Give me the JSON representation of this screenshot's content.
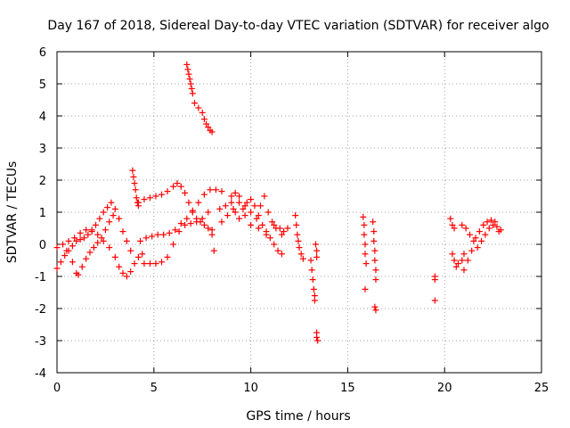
{
  "chart_data": {
    "type": "scatter",
    "title": "Day 167 of 2018, Sidereal Day-to-day VTEC variation (SDTVAR) for receiver algo",
    "xlabel": "GPS time / hours",
    "ylabel": "SDTVAR / TECUs",
    "xlim": [
      0,
      25
    ],
    "ylim": [
      -4,
      6
    ],
    "xticks": [
      0,
      5,
      10,
      15,
      20,
      25
    ],
    "yticks": [
      -4,
      -3,
      -2,
      -1,
      0,
      1,
      2,
      3,
      4,
      5,
      6
    ],
    "grid": true,
    "marker": "+",
    "color": "#ff0000",
    "series": [
      {
        "name": "SDTVAR",
        "points": [
          [
            0.0,
            -0.75
          ],
          [
            0.2,
            -0.55
          ],
          [
            0.4,
            -0.35
          ],
          [
            0.6,
            -0.2
          ],
          [
            0.8,
            -0.05
          ],
          [
            1.0,
            0.1
          ],
          [
            1.2,
            0.15
          ],
          [
            1.4,
            0.2
          ],
          [
            1.6,
            0.3
          ],
          [
            1.8,
            0.4
          ],
          [
            2.0,
            0.6
          ],
          [
            2.2,
            0.8
          ],
          [
            2.4,
            1.0
          ],
          [
            2.6,
            1.15
          ],
          [
            2.8,
            1.3
          ],
          [
            3.0,
            1.1
          ],
          [
            3.2,
            0.8
          ],
          [
            3.4,
            0.4
          ],
          [
            3.6,
            0.1
          ],
          [
            3.8,
            -0.2
          ],
          [
            0.0,
            -0.1
          ],
          [
            0.3,
            0.0
          ],
          [
            0.6,
            0.1
          ],
          [
            0.9,
            0.2
          ],
          [
            1.2,
            0.35
          ],
          [
            1.5,
            0.45
          ],
          [
            1.8,
            0.45
          ],
          [
            2.1,
            0.3
          ],
          [
            2.4,
            0.1
          ],
          [
            2.7,
            -0.1
          ],
          [
            3.0,
            -0.4
          ],
          [
            3.2,
            -0.7
          ],
          [
            3.4,
            -0.9
          ],
          [
            3.6,
            -1.0
          ],
          [
            3.8,
            -0.85
          ],
          [
            4.0,
            -0.6
          ],
          [
            4.2,
            -0.4
          ],
          [
            4.4,
            -0.3
          ],
          [
            0.5,
            -0.2
          ],
          [
            0.8,
            -0.55
          ],
          [
            1.0,
            -0.9
          ],
          [
            1.1,
            -0.95
          ],
          [
            1.3,
            -0.7
          ],
          [
            1.5,
            -0.45
          ],
          [
            1.7,
            -0.25
          ],
          [
            1.9,
            -0.1
          ],
          [
            2.1,
            0.05
          ],
          [
            2.3,
            0.2
          ],
          [
            2.5,
            0.45
          ],
          [
            2.7,
            0.7
          ],
          [
            2.9,
            0.9
          ],
          [
            3.9,
            2.3
          ],
          [
            3.95,
            2.1
          ],
          [
            4.0,
            1.9
          ],
          [
            4.05,
            1.7
          ],
          [
            4.1,
            1.45
          ],
          [
            4.15,
            1.3
          ],
          [
            4.2,
            1.2
          ],
          [
            4.2,
            1.3
          ],
          [
            4.5,
            1.4
          ],
          [
            4.8,
            1.45
          ],
          [
            5.1,
            1.5
          ],
          [
            5.4,
            1.55
          ],
          [
            5.7,
            1.65
          ],
          [
            6.0,
            1.8
          ],
          [
            6.2,
            1.9
          ],
          [
            6.4,
            1.8
          ],
          [
            6.6,
            1.6
          ],
          [
            6.8,
            1.3
          ],
          [
            7.0,
            1.0
          ],
          [
            7.2,
            0.8
          ],
          [
            7.4,
            0.7
          ],
          [
            7.6,
            0.6
          ],
          [
            7.8,
            0.5
          ],
          [
            8.0,
            0.45
          ],
          [
            4.3,
            0.1
          ],
          [
            4.6,
            0.2
          ],
          [
            4.9,
            0.25
          ],
          [
            5.2,
            0.3
          ],
          [
            5.5,
            0.3
          ],
          [
            5.8,
            0.35
          ],
          [
            6.1,
            0.45
          ],
          [
            6.4,
            0.65
          ],
          [
            6.7,
            0.8
          ],
          [
            7.0,
            1.05
          ],
          [
            7.3,
            1.3
          ],
          [
            7.6,
            1.55
          ],
          [
            7.9,
            1.7
          ],
          [
            8.2,
            1.7
          ],
          [
            8.5,
            1.65
          ],
          [
            4.5,
            -0.6
          ],
          [
            4.8,
            -0.6
          ],
          [
            5.1,
            -0.6
          ],
          [
            5.4,
            -0.55
          ],
          [
            5.7,
            -0.4
          ],
          [
            6.0,
            0.0
          ],
          [
            6.3,
            0.4
          ],
          [
            6.6,
            0.6
          ],
          [
            6.9,
            0.65
          ],
          [
            7.2,
            0.7
          ],
          [
            7.5,
            0.8
          ],
          [
            7.8,
            1.0
          ],
          [
            8.0,
            0.3
          ],
          [
            8.1,
            -0.2
          ],
          [
            6.7,
            5.6
          ],
          [
            6.75,
            5.45
          ],
          [
            6.8,
            5.3
          ],
          [
            6.85,
            5.15
          ],
          [
            6.9,
            5.0
          ],
          [
            6.95,
            4.85
          ],
          [
            7.0,
            4.7
          ],
          [
            7.1,
            4.4
          ],
          [
            7.3,
            4.25
          ],
          [
            7.5,
            4.1
          ],
          [
            7.6,
            3.9
          ],
          [
            7.7,
            3.75
          ],
          [
            7.8,
            3.65
          ],
          [
            7.9,
            3.55
          ],
          [
            8.0,
            3.5
          ],
          [
            8.4,
            1.1
          ],
          [
            8.7,
            1.2
          ],
          [
            9.0,
            1.3
          ],
          [
            9.2,
            1.0
          ],
          [
            9.4,
            0.8
          ],
          [
            9.6,
            1.1
          ],
          [
            9.8,
            1.3
          ],
          [
            10.0,
            1.4
          ],
          [
            10.2,
            1.2
          ],
          [
            10.4,
            0.9
          ],
          [
            10.6,
            0.6
          ],
          [
            10.8,
            0.3
          ],
          [
            11.0,
            0.2
          ],
          [
            11.2,
            0.0
          ],
          [
            11.4,
            -0.2
          ],
          [
            11.6,
            -0.3
          ],
          [
            8.5,
            0.7
          ],
          [
            8.8,
            0.9
          ],
          [
            9.1,
            1.1
          ],
          [
            9.4,
            1.3
          ],
          [
            9.7,
            0.9
          ],
          [
            10.0,
            0.6
          ],
          [
            10.3,
            0.8
          ],
          [
            10.5,
            1.2
          ],
          [
            10.7,
            1.5
          ],
          [
            10.9,
            1.0
          ],
          [
            11.1,
            0.7
          ],
          [
            11.3,
            0.5
          ],
          [
            11.5,
            0.5
          ],
          [
            11.7,
            0.4
          ],
          [
            11.9,
            0.5
          ],
          [
            9.0,
            1.5
          ],
          [
            9.2,
            1.6
          ],
          [
            9.4,
            1.5
          ],
          [
            9.7,
            1.2
          ],
          [
            10.0,
            1.0
          ],
          [
            10.4,
            0.5
          ],
          [
            10.8,
            0.4
          ],
          [
            11.2,
            0.6
          ],
          [
            11.6,
            0.3
          ],
          [
            12.3,
            0.9
          ],
          [
            12.35,
            0.6
          ],
          [
            12.4,
            0.3
          ],
          [
            12.45,
            0.1
          ],
          [
            12.5,
            -0.1
          ],
          [
            12.6,
            -0.3
          ],
          [
            12.7,
            -0.45
          ],
          [
            13.1,
            -0.5
          ],
          [
            13.15,
            -0.8
          ],
          [
            13.2,
            -1.1
          ],
          [
            13.25,
            -1.4
          ],
          [
            13.3,
            -1.6
          ],
          [
            13.3,
            -1.75
          ],
          [
            13.35,
            0.0
          ],
          [
            13.4,
            -0.2
          ],
          [
            13.4,
            -0.4
          ],
          [
            13.4,
            -2.75
          ],
          [
            13.4,
            -2.9
          ],
          [
            13.45,
            -3.0
          ],
          [
            15.8,
            0.85
          ],
          [
            15.85,
            0.6
          ],
          [
            15.85,
            0.3
          ],
          [
            15.9,
            0.0
          ],
          [
            15.9,
            -0.3
          ],
          [
            15.95,
            -0.6
          ],
          [
            15.9,
            -1.4
          ],
          [
            16.3,
            0.7
          ],
          [
            16.35,
            0.4
          ],
          [
            16.35,
            0.1
          ],
          [
            16.4,
            -0.2
          ],
          [
            16.4,
            -0.5
          ],
          [
            16.45,
            -0.8
          ],
          [
            16.45,
            -1.1
          ],
          [
            16.4,
            -1.95
          ],
          [
            16.45,
            -2.05
          ],
          [
            19.5,
            -1.0
          ],
          [
            19.5,
            -1.1
          ],
          [
            19.5,
            -1.75
          ],
          [
            20.3,
            0.8
          ],
          [
            20.4,
            0.6
          ],
          [
            20.5,
            0.5
          ],
          [
            20.4,
            -0.3
          ],
          [
            20.5,
            -0.5
          ],
          [
            20.6,
            -0.7
          ],
          [
            20.7,
            -0.6
          ],
          [
            20.9,
            -0.5
          ],
          [
            21.0,
            -0.3
          ],
          [
            20.9,
            0.6
          ],
          [
            21.1,
            0.5
          ],
          [
            21.3,
            0.3
          ],
          [
            21.5,
            0.1
          ],
          [
            21.7,
            -0.1
          ],
          [
            21.9,
            0.1
          ],
          [
            22.1,
            0.3
          ],
          [
            22.3,
            0.5
          ],
          [
            22.5,
            0.6
          ],
          [
            22.7,
            0.55
          ],
          [
            22.9,
            0.45
          ],
          [
            21.0,
            -0.8
          ],
          [
            21.2,
            -0.5
          ],
          [
            21.4,
            -0.2
          ],
          [
            21.6,
            0.2
          ],
          [
            21.8,
            0.4
          ],
          [
            22.0,
            0.6
          ],
          [
            22.2,
            0.7
          ],
          [
            22.4,
            0.75
          ],
          [
            22.6,
            0.7
          ],
          [
            22.8,
            0.4
          ]
        ]
      }
    ]
  }
}
